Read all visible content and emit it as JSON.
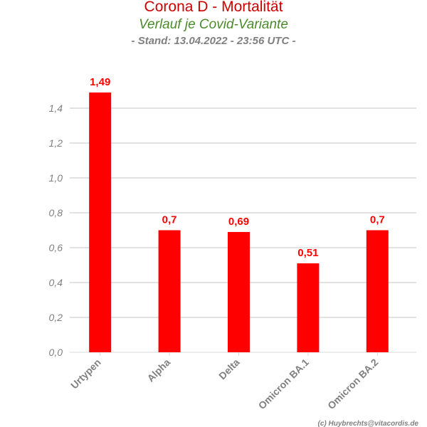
{
  "chart_data": {
    "type": "bar",
    "title": "Corona D - Mortalität",
    "subtitle": "Verlauf je Covid-Variante",
    "stand": "- Stand: 13.04.2022 - 23:56 UTC -",
    "categories": [
      "Urtypen",
      "Alpha",
      "Delta",
      "Omicron BA.1",
      "Omicron BA.2"
    ],
    "values": [
      1.49,
      0.7,
      0.69,
      0.51,
      0.7
    ],
    "value_labels": [
      "1,49",
      "0,7",
      "0,69",
      "0,51",
      "0,7"
    ],
    "yticks": [
      0,
      0.2,
      0.4,
      0.6,
      0.8,
      1.0,
      1.2,
      1.4
    ],
    "ytick_labels": [
      "0,0",
      "0,2",
      "0,4",
      "0,6",
      "0,8",
      "1,0",
      "1,2",
      "1,4"
    ],
    "ylim": [
      0,
      1.6
    ],
    "grid": true,
    "bar_color": "#ff0000",
    "grid_color": "#d9d9d9"
  },
  "credit": "(c) Huybrechts@vitacordis.de"
}
